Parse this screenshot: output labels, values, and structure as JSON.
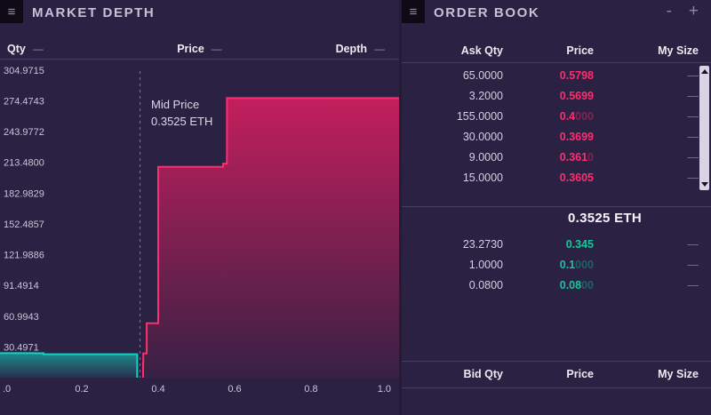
{
  "colors": {
    "background": "#2b2142",
    "ask_pink": "#ff2d6f",
    "bid_teal": "#14d0c0",
    "bid_green": "#17c69c",
    "divider": "#463e60",
    "text_primary": "#eceaf2",
    "text_muted": "#c9c4d8"
  },
  "market_depth": {
    "menu_icon": "≡",
    "title": "MARKET DEPTH",
    "columns": [
      {
        "label": "Qty",
        "toggle": "—"
      },
      {
        "label": "Price",
        "toggle": "—"
      },
      {
        "label": "Depth",
        "toggle": "—"
      }
    ],
    "mid_price_label": "Mid Price",
    "mid_price_value": "0.3525 ETH"
  },
  "order_book": {
    "menu_icon": "≡",
    "title": "ORDER BOOK",
    "minimize": "-",
    "maximize": "+",
    "ask_header": {
      "qty": "Ask Qty",
      "price": "Price",
      "size": "My Size"
    },
    "bid_header": {
      "qty": "Bid Qty",
      "price": "Price",
      "size": "My Size"
    },
    "asks": [
      {
        "qty": "65.0000",
        "price_main": "0.5798",
        "price_dim": "",
        "size": "—"
      },
      {
        "qty": "3.2000",
        "price_main": "0.5699",
        "price_dim": "",
        "size": "—"
      },
      {
        "qty": "155.0000",
        "price_main": "0.4",
        "price_dim": "000",
        "size": "—"
      },
      {
        "qty": "30.0000",
        "price_main": "0.3699",
        "price_dim": "",
        "size": "—"
      },
      {
        "qty": "9.0000",
        "price_main": "0.361",
        "price_dim": "0",
        "size": "—"
      },
      {
        "qty": "15.0000",
        "price_main": "0.3605",
        "price_dim": "",
        "size": "—"
      }
    ],
    "mid_price": "0.3525 ETH",
    "bids": [
      {
        "qty": "23.2730",
        "price_main": "0.345",
        "price_dim": "",
        "size": "—"
      },
      {
        "qty": "1.0000",
        "price_main": "0.1",
        "price_dim": "000",
        "size": "—"
      },
      {
        "qty": "0.0800",
        "price_main": "0.08",
        "price_dim": "00",
        "size": "—"
      }
    ]
  },
  "chart_data": {
    "type": "area",
    "title": "MARKET DEPTH",
    "mid_price": 0.3525,
    "xlim": [
      0,
      1
    ],
    "ylim": [
      0,
      312
    ],
    "x_ticks": [
      {
        "label": ".0",
        "value": 0
      },
      {
        "label": "0.2",
        "value": 0.2
      },
      {
        "label": "0.4",
        "value": 0.4
      },
      {
        "label": "0.6",
        "value": 0.6
      },
      {
        "label": "0.8",
        "value": 0.8
      },
      {
        "label": "1.0",
        "value": 1.0
      }
    ],
    "y_ticks": [
      "304.9715",
      "274.4743",
      "243.9772",
      "213.4800",
      "182.9829",
      "152.4857",
      "121.9886",
      "91.4914",
      "60.9943",
      "30.4971"
    ],
    "series": [
      {
        "name": "bids",
        "color": "#14d0c0",
        "points": [
          {
            "price": 0.345,
            "cum_qty": 23.273
          },
          {
            "price": 0.1,
            "cum_qty": 24.273
          },
          {
            "price": 0.08,
            "cum_qty": 24.353
          }
        ]
      },
      {
        "name": "asks",
        "color": "#ff2d6f",
        "points": [
          {
            "price": 0.3605,
            "cum_qty": 15.0
          },
          {
            "price": 0.361,
            "cum_qty": 24.0
          },
          {
            "price": 0.3699,
            "cum_qty": 54.0
          },
          {
            "price": 0.4,
            "cum_qty": 209.0
          },
          {
            "price": 0.5699,
            "cum_qty": 212.2
          },
          {
            "price": 0.5798,
            "cum_qty": 277.2
          }
        ]
      }
    ]
  }
}
